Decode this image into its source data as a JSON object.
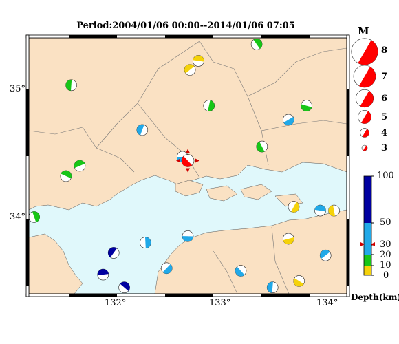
{
  "title": "Period:2004/01/06 00:00--2014/01/06 07:05",
  "axes": {
    "lat_labels": [
      "35°",
      "34°"
    ],
    "lon_labels": [
      "132°",
      "133°",
      "134°"
    ]
  },
  "legend": {
    "magnitude_header": "M",
    "magnitudes": [
      "8",
      "7",
      "6",
      "5",
      "4",
      "3"
    ],
    "depth_ticks": [
      "100",
      "50",
      "30",
      "20",
      "10",
      "0"
    ],
    "depth_title": "Depth(km)"
  },
  "colors": {
    "land": "#fae1c3",
    "sea": "#e0f8fb",
    "deep": "#0000a0",
    "intermediate": "#21a9e8",
    "shallow": "#17c617",
    "very_shallow": "#f5d20a",
    "large_event": "#ff0000"
  },
  "icons": [
    "focal-mechanism-icon",
    "epicenter-marker-icon"
  ],
  "map_data": {
    "region": "Chugoku / western Seto Inland Sea",
    "lon_range": [
      131.2,
      134.2
    ],
    "lat_range": [
      33.4,
      35.4
    ],
    "events": [
      {
        "lon": 132.65,
        "lat": 34.47,
        "depth": "intermediate"
      },
      {
        "lon": 132.7,
        "lat": 34.44,
        "depth": "large"
      },
      {
        "lon": 131.6,
        "lat": 35.03,
        "depth": "shallow"
      },
      {
        "lon": 132.72,
        "lat": 35.15,
        "depth": "very_shallow"
      },
      {
        "lon": 132.8,
        "lat": 35.22,
        "depth": "very_shallow"
      },
      {
        "lon": 133.35,
        "lat": 35.35,
        "depth": "shallow"
      },
      {
        "lon": 132.9,
        "lat": 34.87,
        "depth": "shallow"
      },
      {
        "lon": 133.65,
        "lat": 34.76,
        "depth": "intermediate"
      },
      {
        "lon": 133.82,
        "lat": 34.87,
        "depth": "shallow"
      },
      {
        "lon": 133.4,
        "lat": 34.55,
        "depth": "shallow"
      },
      {
        "lon": 132.27,
        "lat": 34.68,
        "depth": "intermediate"
      },
      {
        "lon": 131.68,
        "lat": 34.4,
        "depth": "shallow"
      },
      {
        "lon": 131.55,
        "lat": 34.32,
        "depth": "shallow"
      },
      {
        "lon": 131.25,
        "lat": 34.0,
        "depth": "shallow"
      },
      {
        "lon": 133.7,
        "lat": 34.08,
        "depth": "very_shallow"
      },
      {
        "lon": 133.65,
        "lat": 33.83,
        "depth": "very_shallow"
      },
      {
        "lon": 133.75,
        "lat": 33.5,
        "depth": "very_shallow"
      },
      {
        "lon": 134.08,
        "lat": 34.05,
        "depth": "very_shallow"
      },
      {
        "lon": 132.0,
        "lat": 33.72,
        "depth": "deep"
      },
      {
        "lon": 131.9,
        "lat": 33.55,
        "depth": "deep"
      },
      {
        "lon": 132.1,
        "lat": 33.45,
        "depth": "deep"
      },
      {
        "lon": 132.3,
        "lat": 33.8,
        "depth": "intermediate"
      },
      {
        "lon": 132.5,
        "lat": 33.6,
        "depth": "intermediate"
      },
      {
        "lon": 132.7,
        "lat": 33.85,
        "depth": "intermediate"
      },
      {
        "lon": 133.2,
        "lat": 33.58,
        "depth": "intermediate"
      },
      {
        "lon": 133.5,
        "lat": 33.45,
        "depth": "intermediate"
      },
      {
        "lon": 134.0,
        "lat": 33.7,
        "depth": "intermediate"
      },
      {
        "lon": 133.95,
        "lat": 34.05,
        "depth": "intermediate"
      }
    ]
  }
}
